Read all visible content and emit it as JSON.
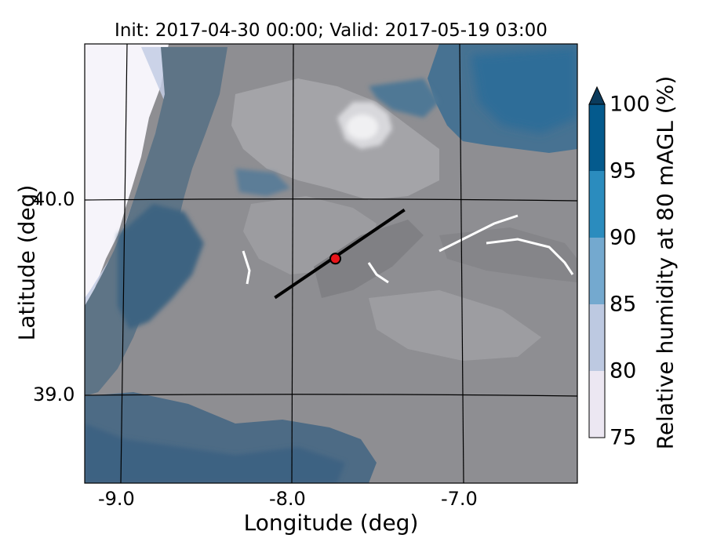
{
  "title": "Init: 2017-04-30 00:00; Valid: 2017-05-19 03:00",
  "axes": {
    "xlabel": "Longitude (deg)",
    "ylabel": "Latitude (deg)",
    "xticks": [
      "-9.0",
      "-8.0",
      "-7.0"
    ],
    "yticks": [
      "40.0",
      "39.0"
    ]
  },
  "colorbar": {
    "label": "Relative humidity at 80 mAGL (%)",
    "ticks": [
      "75",
      "80",
      "85",
      "90",
      "95",
      "100"
    ],
    "levels": [
      75,
      80,
      85,
      90,
      95,
      100
    ],
    "colors": [
      "#ece7f2",
      "#bdc9e1",
      "#74a9cf",
      "#2b8cbe",
      "#045a8d"
    ],
    "extend": "max"
  },
  "map": {
    "lon_range": [
      -9.2,
      -6.35
    ],
    "lat_range": [
      38.55,
      40.8
    ],
    "transect": {
      "start": [
        -8.1,
        39.5
      ],
      "end": [
        -7.35,
        39.95
      ]
    },
    "point": {
      "lon": -7.75,
      "lat": 39.7,
      "color": "#e8141a"
    }
  }
}
